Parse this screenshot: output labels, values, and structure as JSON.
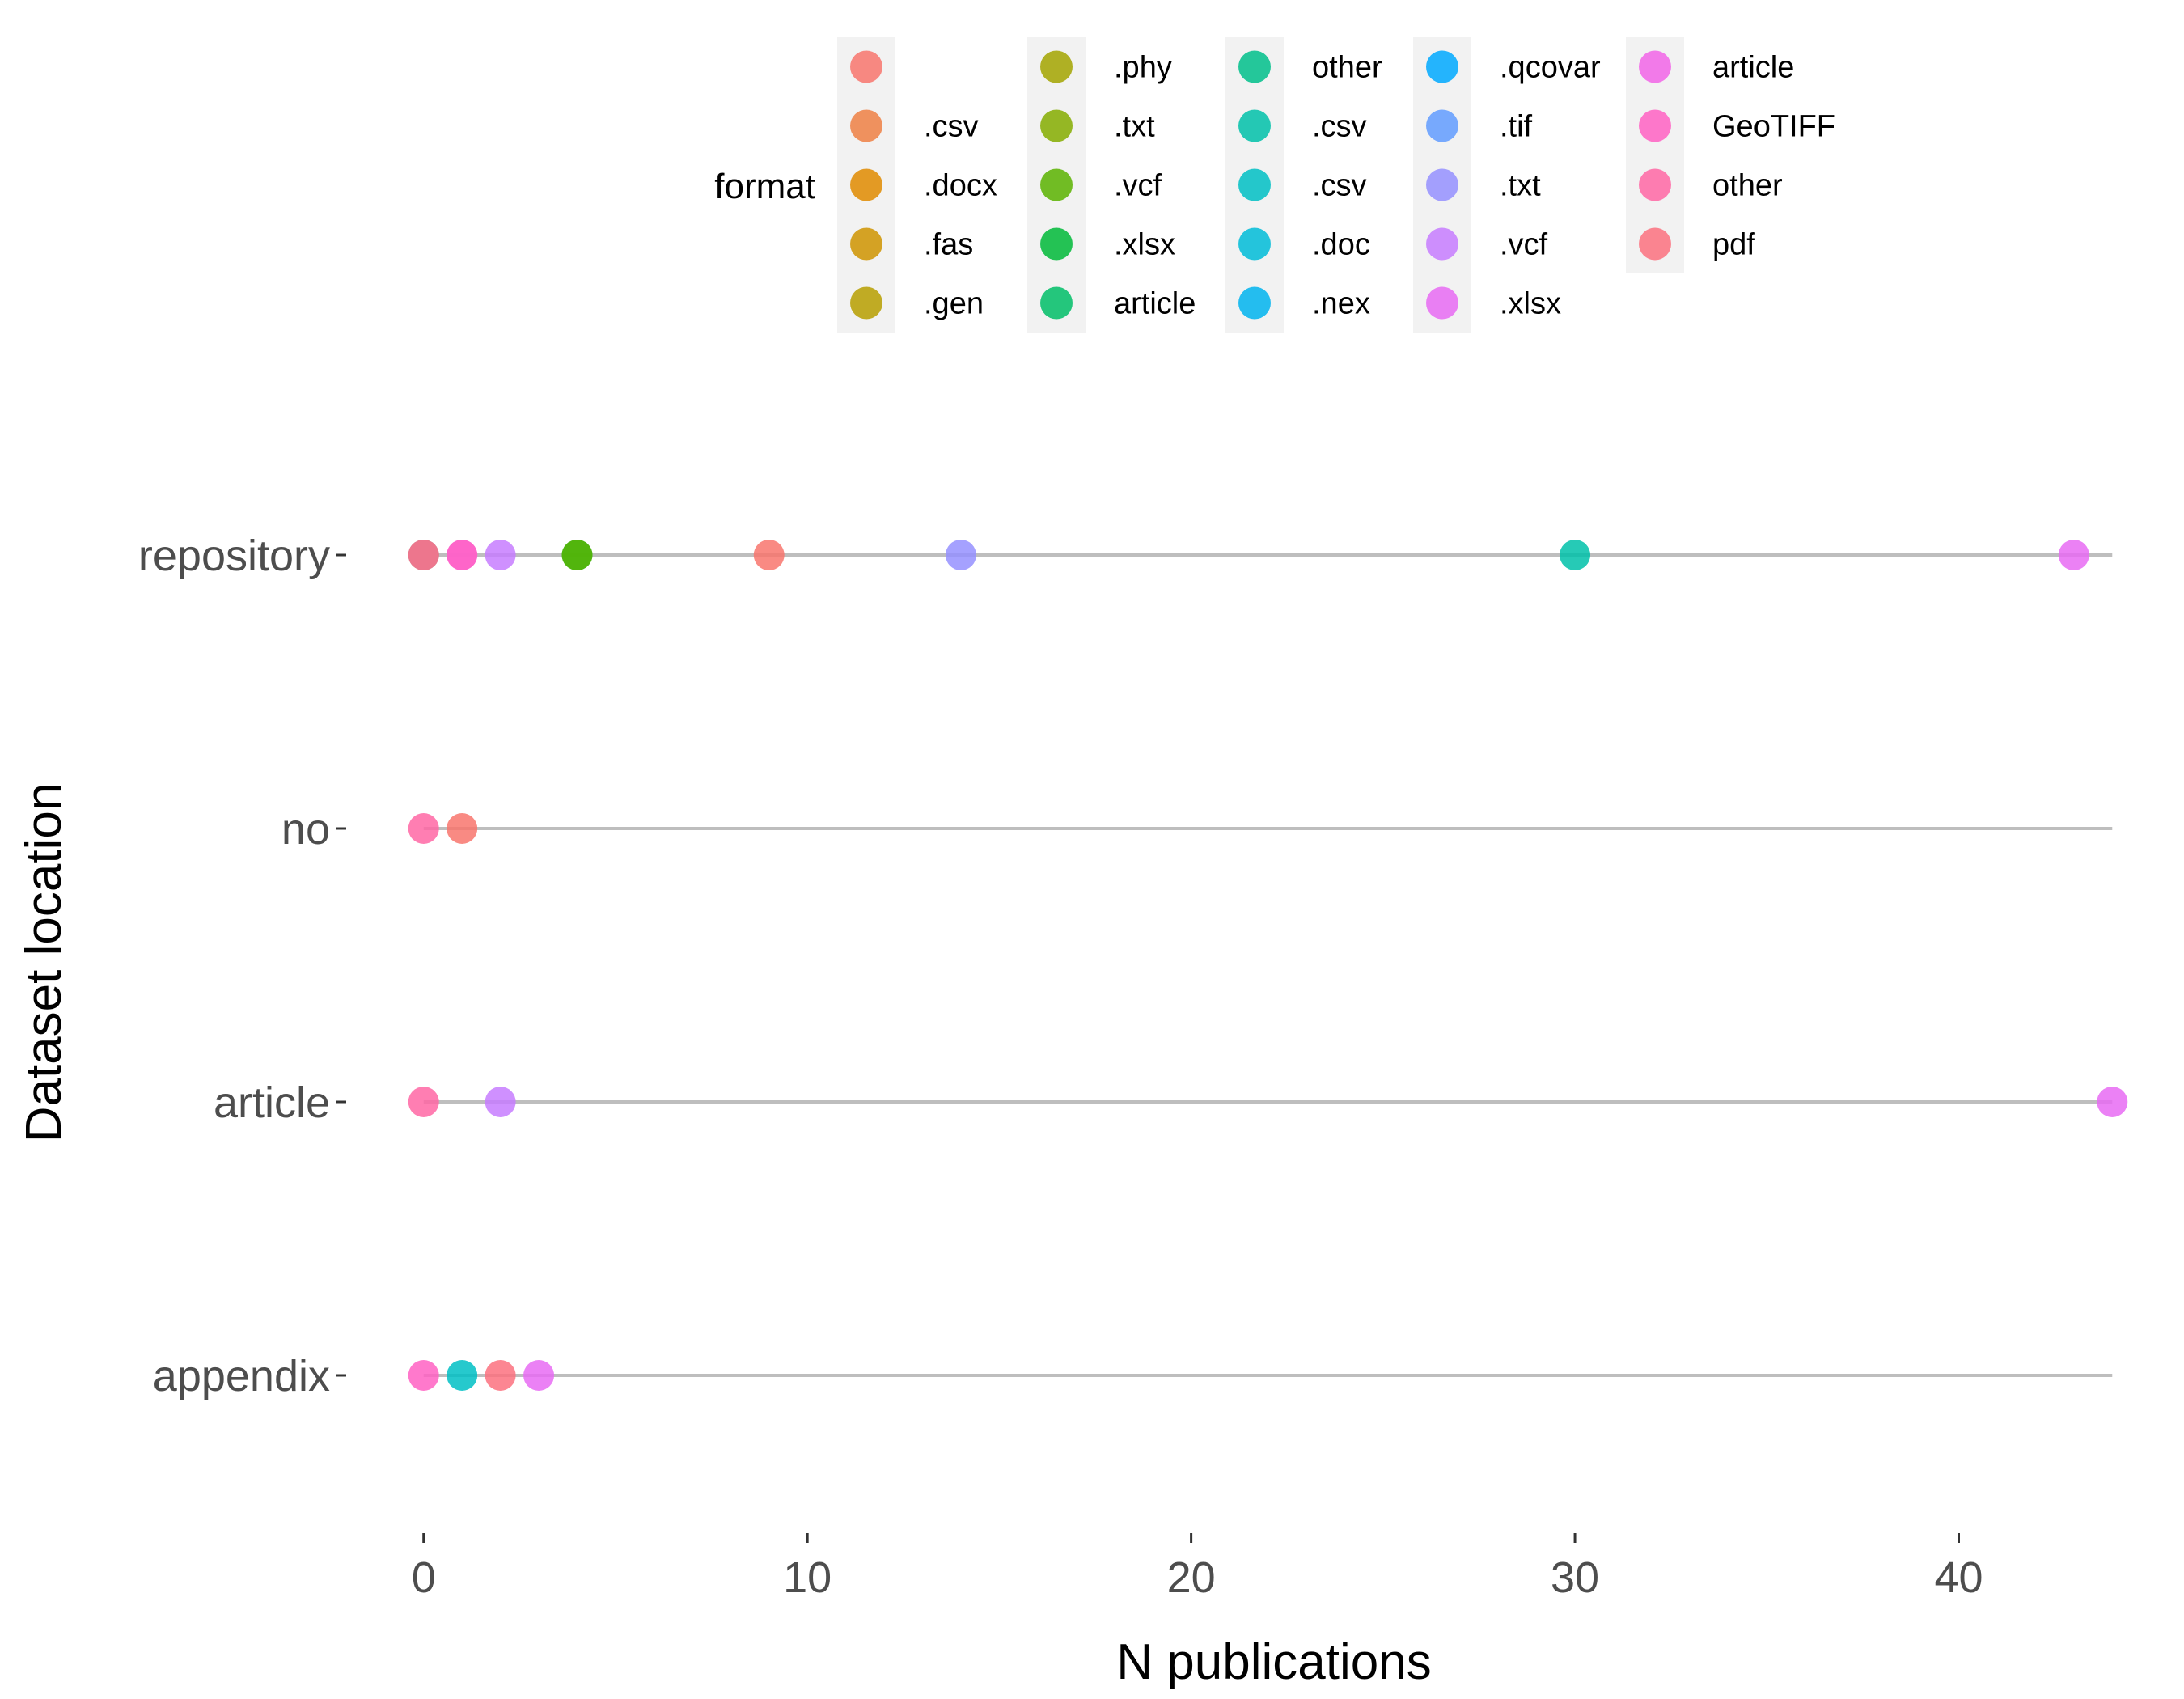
{
  "chart_data": {
    "type": "scatter",
    "xlabel": "N publications",
    "ylabel": "Dataset location",
    "xlim": [
      -0.5,
      44.5
    ],
    "x_ticks": [
      0,
      10,
      20,
      30,
      40
    ],
    "categories": [
      "repository",
      "no",
      "article",
      "appendix"
    ],
    "grid": false,
    "legend": {
      "title": "format",
      "placement": "top",
      "columns": [
        [
          {
            "label": "",
            "color": "#F8766D"
          },
          {
            "label": ".csv",
            "color": "#EE8044"
          },
          {
            "label": ".docx",
            "color": "#E08B00"
          },
          {
            "label": ".fas",
            "color": "#CF9400"
          },
          {
            "label": ".gen",
            "color": "#B79F00"
          }
        ],
        [
          {
            "label": ".phy",
            "color": "#A3A500"
          },
          {
            "label": ".txt",
            "color": "#85AD00"
          },
          {
            "label": ".vcf",
            "color": "#5BB300"
          },
          {
            "label": ".xlsx",
            "color": "#00BA38"
          },
          {
            "label": "article",
            "color": "#00BE67"
          }
        ],
        [
          {
            "label": "other",
            "color": "#00C08B"
          },
          {
            "label": ".csv",
            "color": "#00C1A9"
          },
          {
            "label": ".csv",
            "color": "#00BFC4"
          },
          {
            "label": ".doc",
            "color": "#00BCD8"
          },
          {
            "label": ".nex",
            "color": "#00B4EF"
          }
        ],
        [
          {
            "label": ".qcovar",
            "color": "#00A9FF"
          },
          {
            "label": ".tif",
            "color": "#619CFF"
          },
          {
            "label": ".txt",
            "color": "#9590FF"
          },
          {
            "label": ".vcf",
            "color": "#C77CFF"
          },
          {
            "label": ".xlsx",
            "color": "#E76BF3"
          }
        ],
        [
          {
            "label": "article",
            "color": "#F265E7"
          },
          {
            "label": "GeoTIFF",
            "color": "#FF61C3"
          },
          {
            "label": "other",
            "color": "#FF67A4"
          },
          {
            "label": "pdf",
            "color": "#FC717F"
          }
        ]
      ]
    },
    "points": [
      {
        "category": "repository",
        "x": 0,
        "color": "#F8766D"
      },
      {
        "category": "repository",
        "x": 0,
        "color": "#B79F00"
      },
      {
        "category": "repository",
        "x": 0,
        "color": "#9590FF"
      },
      {
        "category": "repository",
        "x": 0,
        "color": "#FC717F"
      },
      {
        "category": "repository",
        "x": 1,
        "color": "#F265E7"
      },
      {
        "category": "repository",
        "x": 1,
        "color": "#FF61C3"
      },
      {
        "category": "repository",
        "x": 2,
        "color": "#C77CFF"
      },
      {
        "category": "repository",
        "x": 4,
        "color": "#00BA38"
      },
      {
        "category": "repository",
        "x": 4,
        "color": "#5BB300"
      },
      {
        "category": "repository",
        "x": 9,
        "color": "#F8766D"
      },
      {
        "category": "repository",
        "x": 14,
        "color": "#9590FF"
      },
      {
        "category": "repository",
        "x": 30,
        "color": "#00C1A9"
      },
      {
        "category": "repository",
        "x": 43,
        "color": "#E76BF3"
      },
      {
        "category": "no",
        "x": 0,
        "color": "#FF67A4"
      },
      {
        "category": "no",
        "x": 1,
        "color": "#F8766D"
      },
      {
        "category": "article",
        "x": 0,
        "color": "#FF67A4"
      },
      {
        "category": "article",
        "x": 2,
        "color": "#C77CFF"
      },
      {
        "category": "article",
        "x": 44,
        "color": "#E76BF3"
      },
      {
        "category": "appendix",
        "x": 0,
        "color": "#FF61C3"
      },
      {
        "category": "appendix",
        "x": 1,
        "color": "#00BFC4"
      },
      {
        "category": "appendix",
        "x": 2,
        "color": "#FC717F"
      },
      {
        "category": "appendix",
        "x": 3,
        "color": "#E76BF3"
      }
    ]
  }
}
